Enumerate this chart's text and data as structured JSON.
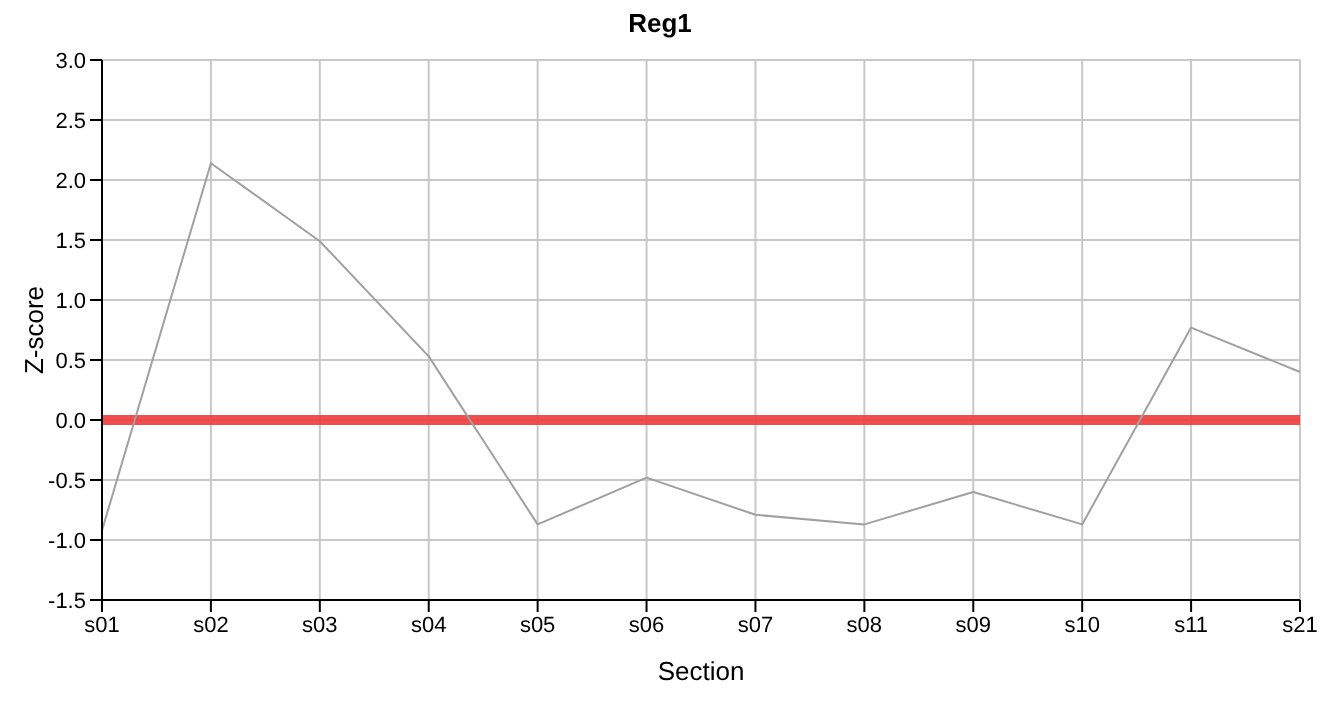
{
  "chart_data": {
    "type": "line",
    "title": "Reg1",
    "xlabel": "Section",
    "ylabel": "Z-score",
    "categories": [
      "s01",
      "s02",
      "s03",
      "s04",
      "s05",
      "s06",
      "s07",
      "s08",
      "s09",
      "s10",
      "s11",
      "s21"
    ],
    "series": [
      {
        "color": "#a0a0a0",
        "values": [
          -0.92,
          2.14,
          1.49,
          0.53,
          -0.87,
          -0.48,
          -0.79,
          -0.87,
          -0.6,
          -0.87,
          0.77,
          0.4
        ]
      }
    ],
    "ylim": [
      -1.5,
      3.0
    ],
    "yticks": [
      {
        "value": -1.5,
        "label": "-1.5"
      },
      {
        "value": -1,
        "label": "-1.0"
      },
      {
        "value": -0.5,
        "label": "-0.5"
      },
      {
        "value": 0,
        "label": "0.0"
      },
      {
        "value": 0.5,
        "label": "0.5"
      },
      {
        "value": 1,
        "label": "1.0"
      },
      {
        "value": 1.5,
        "label": "1.5"
      },
      {
        "value": 2,
        "label": "2.0"
      },
      {
        "value": 2.5,
        "label": "2.5"
      },
      {
        "value": 3,
        "label": "3.0"
      }
    ],
    "ref_lines": [
      {
        "axis": "y",
        "value": 0,
        "color": "#f03c3c"
      }
    ],
    "grid": true
  }
}
